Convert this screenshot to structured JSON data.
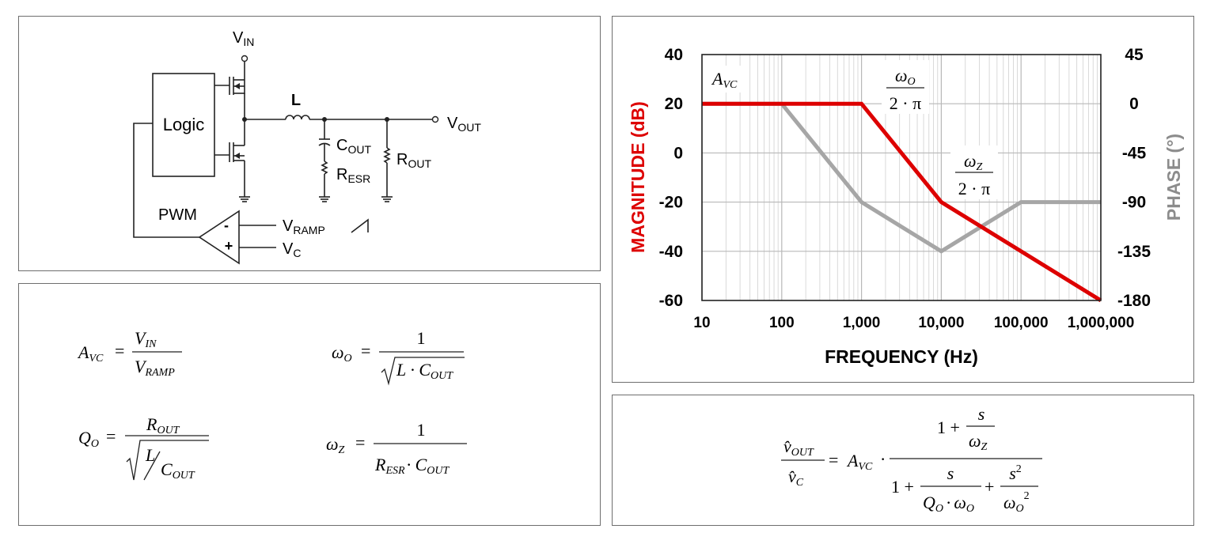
{
  "circuit": {
    "vin": "V",
    "vin_sub": "IN",
    "logic": "Logic",
    "inductor": "L",
    "vout": "V",
    "vout_sub": "OUT",
    "cout": "C",
    "cout_sub": "OUT",
    "resr": "R",
    "resr_sub": "ESR",
    "rout": "R",
    "rout_sub": "OUT",
    "pwm": "PWM",
    "vramp": "V",
    "vramp_sub": "RAMP",
    "vc": "V",
    "vc_sub": "C",
    "minus": "-",
    "plus": "+"
  },
  "equations_left": {
    "avc": {
      "lhs": "A",
      "lhs_sub": "VC",
      "num": "V",
      "num_sub": "IN",
      "den": "V",
      "den_sub": "RAMP"
    },
    "wo": {
      "lhs": "ω",
      "lhs_sub": "O",
      "num": "1",
      "den": "L · C",
      "den_sub": "OUT"
    },
    "qo": {
      "lhs": "Q",
      "lhs_sub": "O",
      "num": "R",
      "num_sub": "OUT",
      "den_l": "L",
      "den_c": "C",
      "den_c_sub": "OUT"
    },
    "wz": {
      "lhs": "ω",
      "lhs_sub": "Z",
      "num": "1",
      "den_r": "R",
      "den_r_sub": "ESR",
      "den_c": "· C",
      "den_c_sub": "OUT"
    }
  },
  "equation_right": {
    "lhs_num": "v̂",
    "lhs_num_sub": "OUT",
    "lhs_den": "v̂",
    "lhs_den_sub": "C",
    "gain": "A",
    "gain_sub": "VC",
    "num_one": "1 +",
    "num_s": "s",
    "num_w": "ω",
    "num_w_sub": "Z",
    "den_one": "1 +",
    "den_s": "s",
    "den_q": "Q",
    "den_q_sub": "O",
    "den_dot": "·",
    "den_w": "ω",
    "den_w_sub": "O",
    "den_plus": "+",
    "den_s2": "s",
    "den_s2_exp": "2",
    "den_w2": "ω",
    "den_w2_sub": "O",
    "den_w2_exp": "2"
  },
  "chart_data": {
    "type": "line",
    "xlabel": "FREQUENCY (Hz)",
    "ylabel_left": "MAGNITUDE (dB)",
    "ylabel_right": "PHASE (°)",
    "x_scale": "log",
    "xlim": [
      10,
      1000000
    ],
    "ylim_left": [
      -60,
      40
    ],
    "ylim_right": [
      -180,
      45
    ],
    "x_ticks": [
      "10",
      "100",
      "1,000",
      "10,000",
      "100,000",
      "1,000,000"
    ],
    "y_ticks_left": [
      "40",
      "20",
      "0",
      "-20",
      "-40",
      "-60"
    ],
    "y_ticks_right": [
      "45",
      "0",
      "-45",
      "-90",
      "-135",
      "-180"
    ],
    "grid": true,
    "series": [
      {
        "axis": "left",
        "color": "#dd0000",
        "x": [
          10,
          1000,
          10000,
          1000000
        ],
        "y": [
          20,
          20,
          -20,
          -60
        ]
      },
      {
        "axis": "right",
        "color": "#a6a6a6",
        "x": [
          10,
          100,
          1000,
          10000,
          100000,
          1000000
        ],
        "y": [
          0,
          0,
          -90,
          -135,
          -90,
          -90
        ]
      }
    ],
    "annotations": {
      "avc": {
        "text": "A",
        "sub": "VC"
      },
      "wo": {
        "num": "ω",
        "num_sub": "O",
        "den": "2 · π"
      },
      "wz": {
        "num": "ω",
        "num_sub": "Z",
        "den": "2 · π"
      }
    }
  },
  "colors": {
    "magnitude": "#dd0000",
    "phase": "#a6a6a6",
    "phase_label": "#8c8c8c",
    "grid": "#d0d0d0",
    "border": "#6e6e6e"
  }
}
